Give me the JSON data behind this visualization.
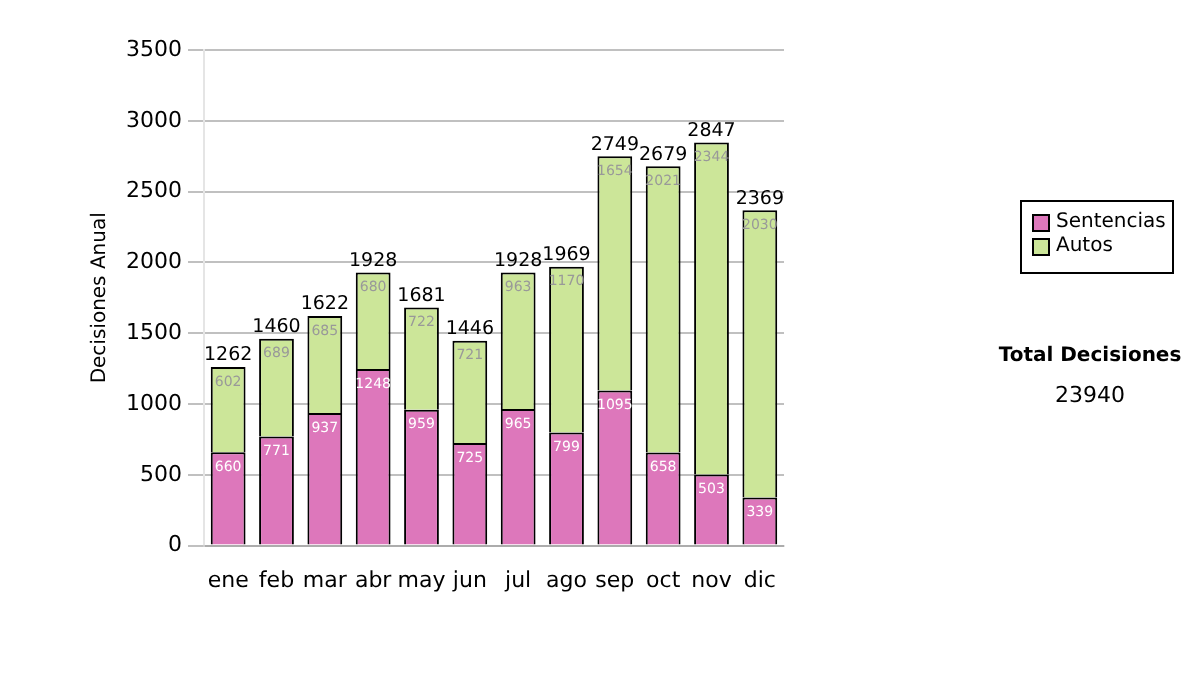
{
  "chart_data": {
    "type": "bar",
    "ylabel": "Decisiones Anual",
    "categories": [
      "ene",
      "feb",
      "mar",
      "abr",
      "may",
      "jun",
      "jul",
      "ago",
      "sep",
      "oct",
      "nov",
      "dic"
    ],
    "series": [
      {
        "name": "Sentencias",
        "color": "#dd77bb",
        "values": [
          660,
          771,
          937,
          1248,
          959,
          725,
          965,
          799,
          1095,
          658,
          503,
          339
        ]
      },
      {
        "name": "Autos",
        "color": "#cce699",
        "values": [
          602,
          689,
          685,
          680,
          722,
          721,
          963,
          1170,
          1654,
          2021,
          2344,
          2030
        ]
      }
    ],
    "stacked": true,
    "data_labels": true,
    "totals": [
      "1262",
      "1460",
      "1622",
      "1928",
      "1681",
      "1446",
      "1928",
      "1969",
      "2749",
      "2679",
      "2847",
      "2369"
    ],
    "ylim": [
      0,
      3500
    ],
    "yticks": [
      0,
      500,
      1000,
      1500,
      2000,
      2500,
      3000,
      3500
    ],
    "grid": "y",
    "legend": "right",
    "annotations": [
      "Total Decisiones",
      "23940"
    ]
  }
}
